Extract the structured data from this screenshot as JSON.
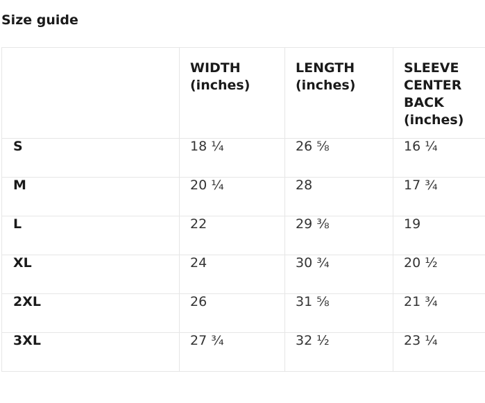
{
  "title": "Size guide",
  "table": {
    "headers": [
      "",
      "WIDTH\n(inches)",
      "LENGTH\n(inches)",
      "SLEEVE\nCENTER\nBACK\n(inches)"
    ],
    "rows": [
      {
        "size": "S",
        "width": "18 ¼",
        "length": "26 ⅝",
        "sleeve": "16 ¼"
      },
      {
        "size": "M",
        "width": "20 ¼",
        "length": "28",
        "sleeve": "17 ¾"
      },
      {
        "size": "L",
        "width": "22",
        "length": "29 ⅜",
        "sleeve": "19"
      },
      {
        "size": "XL",
        "width": "24",
        "length": "30 ¾",
        "sleeve": "20 ½"
      },
      {
        "size": "2XL",
        "width": "26",
        "length": "31 ⅝",
        "sleeve": "21 ¾"
      },
      {
        "size": "3XL",
        "width": "27 ¾",
        "length": "32 ½",
        "sleeve": "23 ¼"
      }
    ]
  }
}
